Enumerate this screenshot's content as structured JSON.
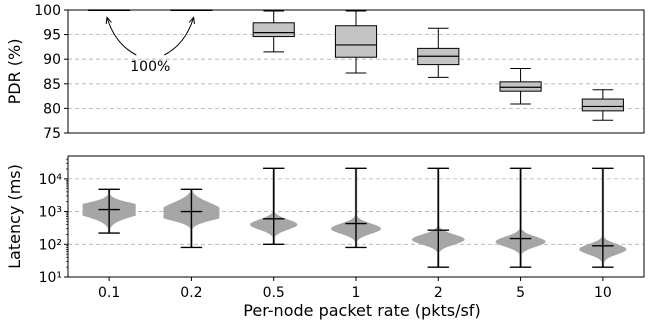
{
  "chart_data": [
    {
      "type": "box",
      "ylabel": "PDR (%)",
      "ylim": [
        75,
        100
      ],
      "yticks": [
        "75",
        "80",
        "85",
        "90",
        "95",
        "100"
      ],
      "grid": "horizontal-dashed",
      "annotation": "100%",
      "categories": [
        "0.1",
        "0.2",
        "0.5",
        "1",
        "2",
        "5",
        "10"
      ],
      "boxes": [
        {
          "min": 100,
          "q1": 100,
          "median": 100,
          "q3": 100,
          "max": 100
        },
        {
          "min": 100,
          "q1": 100,
          "median": 100,
          "q3": 100,
          "max": 100
        },
        {
          "min": 91.5,
          "q1": 94.6,
          "median": 95.4,
          "q3": 97.4,
          "max": 99.8
        },
        {
          "min": 87.2,
          "q1": 90.4,
          "median": 92.9,
          "q3": 96.8,
          "max": 99.8
        },
        {
          "min": 86.3,
          "q1": 88.9,
          "median": 90.6,
          "q3": 92.2,
          "max": 96.3
        },
        {
          "min": 80.9,
          "q1": 83.5,
          "median": 84.3,
          "q3": 85.4,
          "max": 88.1
        },
        {
          "min": 77.6,
          "q1": 79.5,
          "median": 80.4,
          "q3": 81.9,
          "max": 83.8
        }
      ]
    },
    {
      "type": "violin",
      "ylabel": "Latency (ms)",
      "yscale": "log",
      "ylim": [
        10,
        50000
      ],
      "yticks": [
        "10¹",
        "10²",
        "10³",
        "10⁴"
      ],
      "grid": "horizontal-dashed",
      "xlabel": "Per-node packet rate (pkts/sf)",
      "categories": [
        "0.1",
        "0.2",
        "0.5",
        "1",
        "2",
        "5",
        "10"
      ],
      "violins": [
        {
          "min": 220,
          "median": 1150,
          "max": 4800,
          "peaks": [
            1300,
            900
          ],
          "spread": 0.95
        },
        {
          "min": 80,
          "median": 1000,
          "max": 4800,
          "peaks": [
            750,
            1400
          ],
          "spread": 1.0
        },
        {
          "min": 100,
          "median": 600,
          "max": 21000,
          "peaks": [
            400
          ],
          "spread": 0.85
        },
        {
          "min": 80,
          "median": 430,
          "max": 21000,
          "peaks": [
            300
          ],
          "spread": 0.9
        },
        {
          "min": 20,
          "median": 270,
          "max": 21000,
          "peaks": [
            140
          ],
          "spread": 0.95
        },
        {
          "min": 20,
          "median": 150,
          "max": 21000,
          "peaks": [
            120
          ],
          "spread": 0.9
        },
        {
          "min": 20,
          "median": 90,
          "max": 21000,
          "peaks": [
            70
          ],
          "spread": 0.85
        }
      ]
    }
  ]
}
